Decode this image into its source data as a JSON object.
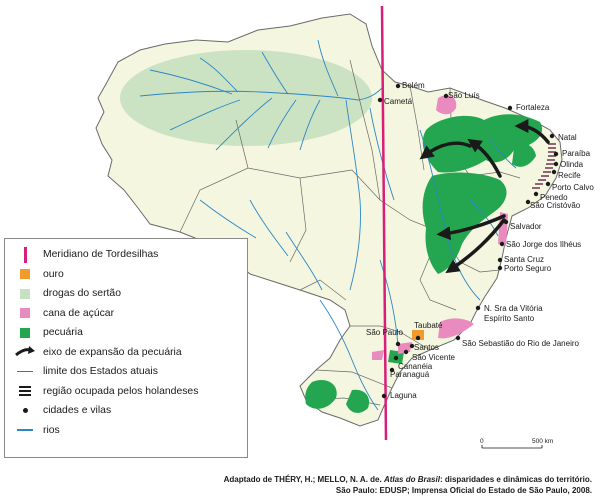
{
  "colors": {
    "meridian": "#d81e79",
    "gold": "#f39a2c",
    "drogas": "#c6e1bf",
    "cana": "#ea8bbf",
    "pecuaria": "#23a64f",
    "country_fill": "#f4f6df",
    "rivers": "#2d86c6",
    "borders": "#6a6a6a"
  },
  "legend": {
    "items": [
      {
        "label": "Meridiano de Tordesilhas",
        "symbol": "vertical-line-icon"
      },
      {
        "label": "ouro",
        "symbol": "orange-square-icon"
      },
      {
        "label": "drogas do sertão",
        "symbol": "light-green-square-icon"
      },
      {
        "label": "cana de açúcar",
        "symbol": "pink-square-icon"
      },
      {
        "label": "pecuária",
        "symbol": "green-square-icon"
      },
      {
        "label": "eixo de expansão da pecuária",
        "symbol": "arrow-icon"
      },
      {
        "label": "limite dos Estados atuais",
        "symbol": "thin-line-icon"
      },
      {
        "label": "região ocupada pelos holandeses",
        "symbol": "hatched-bars-icon"
      },
      {
        "label": "cidades e vilas",
        "symbol": "dot-icon"
      },
      {
        "label": "rios",
        "symbol": "blue-line-icon"
      }
    ]
  },
  "cities": {
    "belem": "Belém",
    "cameta": "Cametá",
    "sao_luis": "São Luís",
    "fortaleza": "Fortaleza",
    "natal": "Natal",
    "paraiba": "Paraíba",
    "olinda": "Olinda",
    "recife": "Recife",
    "porto_calvo": "Porto Calvo",
    "penedo": "Penedo",
    "sao_cristovao": "São Cristóvão",
    "salvador": "Salvador",
    "sao_jorge": "São Jorge dos Ilhéus",
    "santa_cruz": "Santa Cruz",
    "porto_seguro": "Porto Seguro",
    "vitoria": "N. Sra da Vitória",
    "espirito_santo": "Espírito Santo",
    "rio": "São Sebastião do Rio de Janeiro",
    "taubate": "Taubaté",
    "sao_paulo": "São Paulo",
    "santos": "Santos",
    "sao_vicente": "São Vicente",
    "cananeia": "Cananéia",
    "paranagua": "Paranaguá",
    "laguna": "Laguna"
  },
  "scale": {
    "zero": "0",
    "distance": "500 km"
  },
  "credit": {
    "line1_prefix": "Adaptado de THÉRY, H.; MELLO, N. A. de. ",
    "line1_title": "Atlas do Brasil",
    "line1_suffix": ": disparidades e dinâmicas do território.",
    "line2": "São Paulo: EDUSP; Imprensa Oficial do Estado de São Paulo, 2008."
  }
}
